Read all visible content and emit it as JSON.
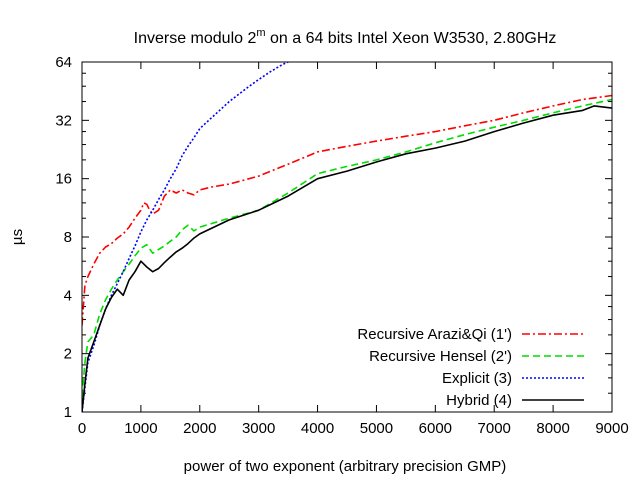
{
  "chart_data": {
    "type": "line",
    "title": {
      "prefix": "Inverse modulo 2",
      "superscript": "m",
      "suffix": " on a 64 bits Intel Xeon W3530, 2.80GHz"
    },
    "xlabel": "power of two exponent (arbitrary precision GMP)",
    "ylabel": "µs",
    "y_scale": "log2",
    "xlim": [
      0,
      9000
    ],
    "ylim": [
      1,
      64
    ],
    "x_ticks": [
      0,
      1000,
      2000,
      3000,
      4000,
      5000,
      6000,
      7000,
      8000,
      9000
    ],
    "y_ticks": [
      1,
      2,
      4,
      8,
      16,
      32,
      64
    ],
    "legend_position": "bottom-right",
    "series": [
      {
        "name": "Recursive Arazi&Qi (1')",
        "color": "#ff0000",
        "dash": "8,3,2,3",
        "x": [
          0,
          50,
          100,
          200,
          300,
          400,
          500,
          600,
          700,
          800,
          900,
          1000,
          1050,
          1100,
          1150,
          1200,
          1300,
          1400,
          1500,
          1600,
          1700,
          1800,
          1900,
          2000,
          2200,
          2500,
          3000,
          3500,
          4000,
          4500,
          5000,
          5500,
          6000,
          6500,
          7000,
          7500,
          8000,
          8500,
          9000
        ],
        "y": [
          2.8,
          4.5,
          5.0,
          5.8,
          6.6,
          7.1,
          7.4,
          7.9,
          8.3,
          9.0,
          10.0,
          11.0,
          12.0,
          11.8,
          11.0,
          10.5,
          11.0,
          13.0,
          14.0,
          13.5,
          14.0,
          13.5,
          13.2,
          14.0,
          14.5,
          15.0,
          16.5,
          19.0,
          22.0,
          23.5,
          25.0,
          26.5,
          28.0,
          30.0,
          32.0,
          35.0,
          38.0,
          41.0,
          43.0
        ]
      },
      {
        "name": "Recursive Hensel (2')",
        "color": "#00dd00",
        "dash": "7,4",
        "x": [
          0,
          50,
          100,
          200,
          300,
          400,
          500,
          600,
          700,
          800,
          900,
          1000,
          1100,
          1200,
          1300,
          1400,
          1500,
          1600,
          1700,
          1800,
          1900,
          2000,
          2500,
          3000,
          3500,
          4000,
          4500,
          5000,
          5500,
          6000,
          6500,
          7000,
          7500,
          8000,
          8500,
          9000
        ],
        "y": [
          1.2,
          1.8,
          2.3,
          2.5,
          3.2,
          3.8,
          4.3,
          4.8,
          5.3,
          5.8,
          6.4,
          7.0,
          7.3,
          6.6,
          6.9,
          7.2,
          7.6,
          8.0,
          8.7,
          9.2,
          8.6,
          9.0,
          10.0,
          11.0,
          13.5,
          17.0,
          18.5,
          20.0,
          22.0,
          24.5,
          27.0,
          29.5,
          32.0,
          35.0,
          38.0,
          41.0
        ]
      },
      {
        "name": "Explicit (3)",
        "color": "#0000ff",
        "dash": "2,2",
        "x": [
          0,
          100,
          200,
          300,
          400,
          500,
          600,
          700,
          800,
          900,
          1000,
          1100,
          1200,
          1300,
          1400,
          1500,
          1600,
          1700,
          1800,
          1900,
          2000,
          2200,
          2500,
          2800,
          3000,
          3200,
          3400,
          3500
        ],
        "y": [
          1.0,
          1.8,
          2.2,
          2.8,
          3.4,
          4.0,
          4.6,
          5.3,
          6.2,
          7.2,
          8.5,
          9.8,
          11.0,
          12.5,
          14.0,
          16.0,
          18.0,
          21.0,
          23.5,
          26.0,
          29.0,
          33.0,
          40.0,
          47.0,
          52.0,
          57.0,
          62.0,
          64.0
        ]
      },
      {
        "name": "Hybrid (4)",
        "color": "#000000",
        "dash": "",
        "x": [
          0,
          50,
          100,
          200,
          300,
          400,
          500,
          600,
          700,
          800,
          900,
          1000,
          1100,
          1200,
          1300,
          1400,
          1500,
          1600,
          1700,
          1800,
          1900,
          2000,
          2500,
          3000,
          3500,
          4000,
          4500,
          5000,
          5500,
          6000,
          6500,
          7000,
          7500,
          8000,
          8500,
          8700,
          9000
        ],
        "y": [
          1.0,
          1.4,
          1.9,
          2.3,
          2.8,
          3.4,
          3.9,
          4.3,
          4.0,
          4.8,
          5.3,
          6.0,
          5.6,
          5.3,
          5.5,
          5.9,
          6.3,
          6.7,
          7.0,
          7.4,
          7.9,
          8.3,
          9.8,
          11.0,
          13.0,
          16.0,
          17.5,
          19.5,
          21.5,
          23.0,
          25.0,
          28.0,
          31.0,
          34.0,
          36.0,
          38.0,
          37.0
        ]
      }
    ]
  }
}
